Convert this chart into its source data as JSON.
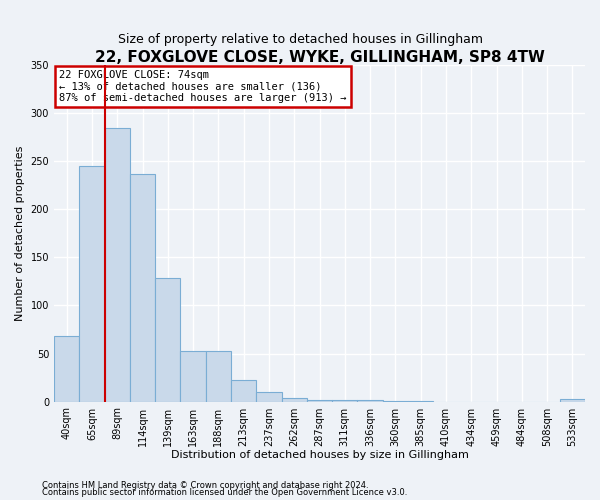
{
  "title": "22, FOXGLOVE CLOSE, WYKE, GILLINGHAM, SP8 4TW",
  "subtitle": "Size of property relative to detached houses in Gillingham",
  "xlabel": "Distribution of detached houses by size in Gillingham",
  "ylabel": "Number of detached properties",
  "categories": [
    "40sqm",
    "65sqm",
    "89sqm",
    "114sqm",
    "139sqm",
    "163sqm",
    "188sqm",
    "213sqm",
    "237sqm",
    "262sqm",
    "287sqm",
    "311sqm",
    "336sqm",
    "360sqm",
    "385sqm",
    "410sqm",
    "434sqm",
    "459sqm",
    "484sqm",
    "508sqm",
    "533sqm"
  ],
  "values": [
    68,
    245,
    285,
    237,
    128,
    53,
    53,
    22,
    10,
    4,
    2,
    2,
    2,
    1,
    1,
    0,
    0,
    0,
    0,
    0,
    3
  ],
  "bar_color": "#c9d9ea",
  "bar_edge_color": "#7aadd4",
  "annotation_line1": "22 FOXGLOVE CLOSE: 74sqm",
  "annotation_line2": "← 13% of detached houses are smaller (136)",
  "annotation_line3": "87% of semi-detached houses are larger (913) →",
  "annotation_color": "#cc0000",
  "vline_color": "#cc0000",
  "vline_x": 1.5,
  "ylim": [
    0,
    350
  ],
  "footer1": "Contains HM Land Registry data © Crown copyright and database right 2024.",
  "footer2": "Contains public sector information licensed under the Open Government Licence v3.0.",
  "bg_color": "#eef2f7",
  "grid_color": "#ffffff",
  "title_fontsize": 11,
  "subtitle_fontsize": 9,
  "ylabel_fontsize": 8,
  "xlabel_fontsize": 8,
  "tick_fontsize": 7,
  "footer_fontsize": 6,
  "annot_fontsize": 7.5
}
